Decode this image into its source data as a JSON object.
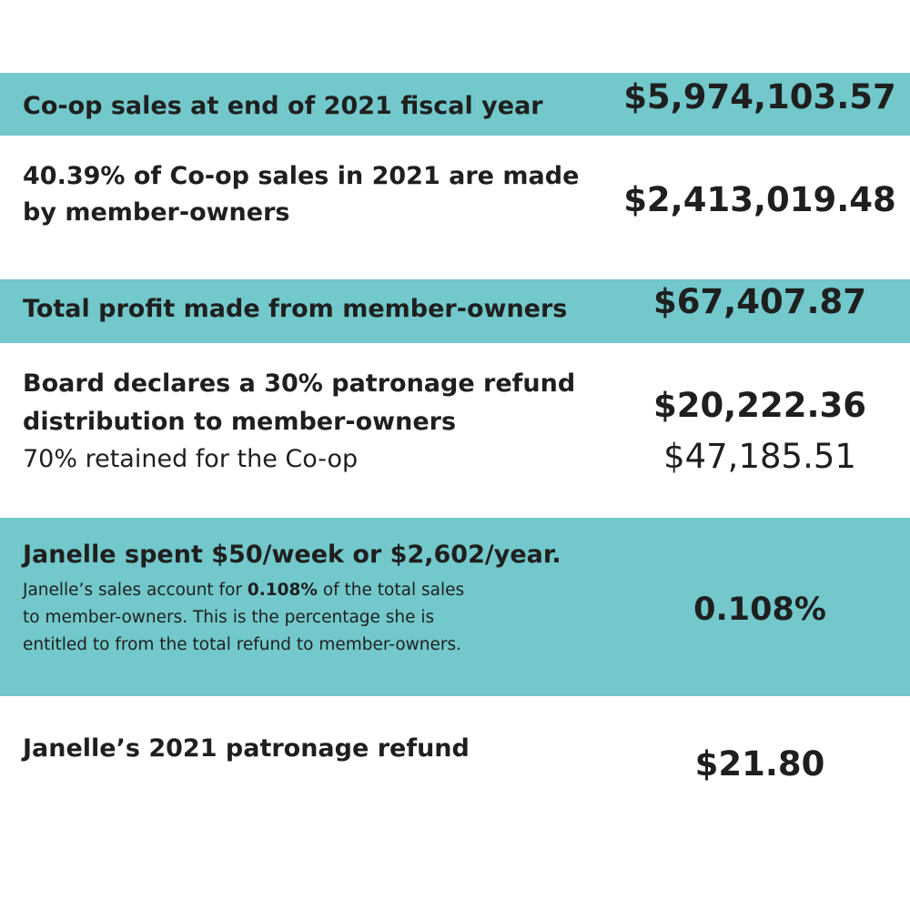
{
  "rows": {
    "sales_total": {
      "label": "Co-op sales at end of 2021 fiscal year",
      "value": "$5,974,103.57"
    },
    "member_sales": {
      "label_line1": "40.39% of Co-op sales in 2021 are made",
      "label_line2": "by member-owners",
      "value": "$2,413,019.48"
    },
    "member_profit": {
      "label": "Total profit made from member-owners",
      "value": "$67,407.87"
    },
    "refund_declared": {
      "label_line1": "Board declares a 30% patronage refund",
      "label_line2": "distribution to member-owners",
      "sub_label": "70% retained for the Co-op",
      "value": "$20,222.36",
      "retained_value": "$47,185.51"
    },
    "janelle_spend": {
      "label": "Janelle spent $50/week or $2,602/year.",
      "note_prefix": "Janelle’s sales account for ",
      "note_highlight": "0.108%",
      "note_suffix": " of the total sales",
      "note_line2": "to member-owners. This is the percentage she is",
      "note_line3": "entitled to from the total refund to member-owners.",
      "value": "0.108%"
    },
    "janelle_refund": {
      "label": "Janelle’s 2021 patronage refund",
      "value": "$21.80"
    }
  },
  "colors": {
    "teal_band": "#72c8ca",
    "text": "#1f1f1f",
    "background": "#ffffff"
  }
}
